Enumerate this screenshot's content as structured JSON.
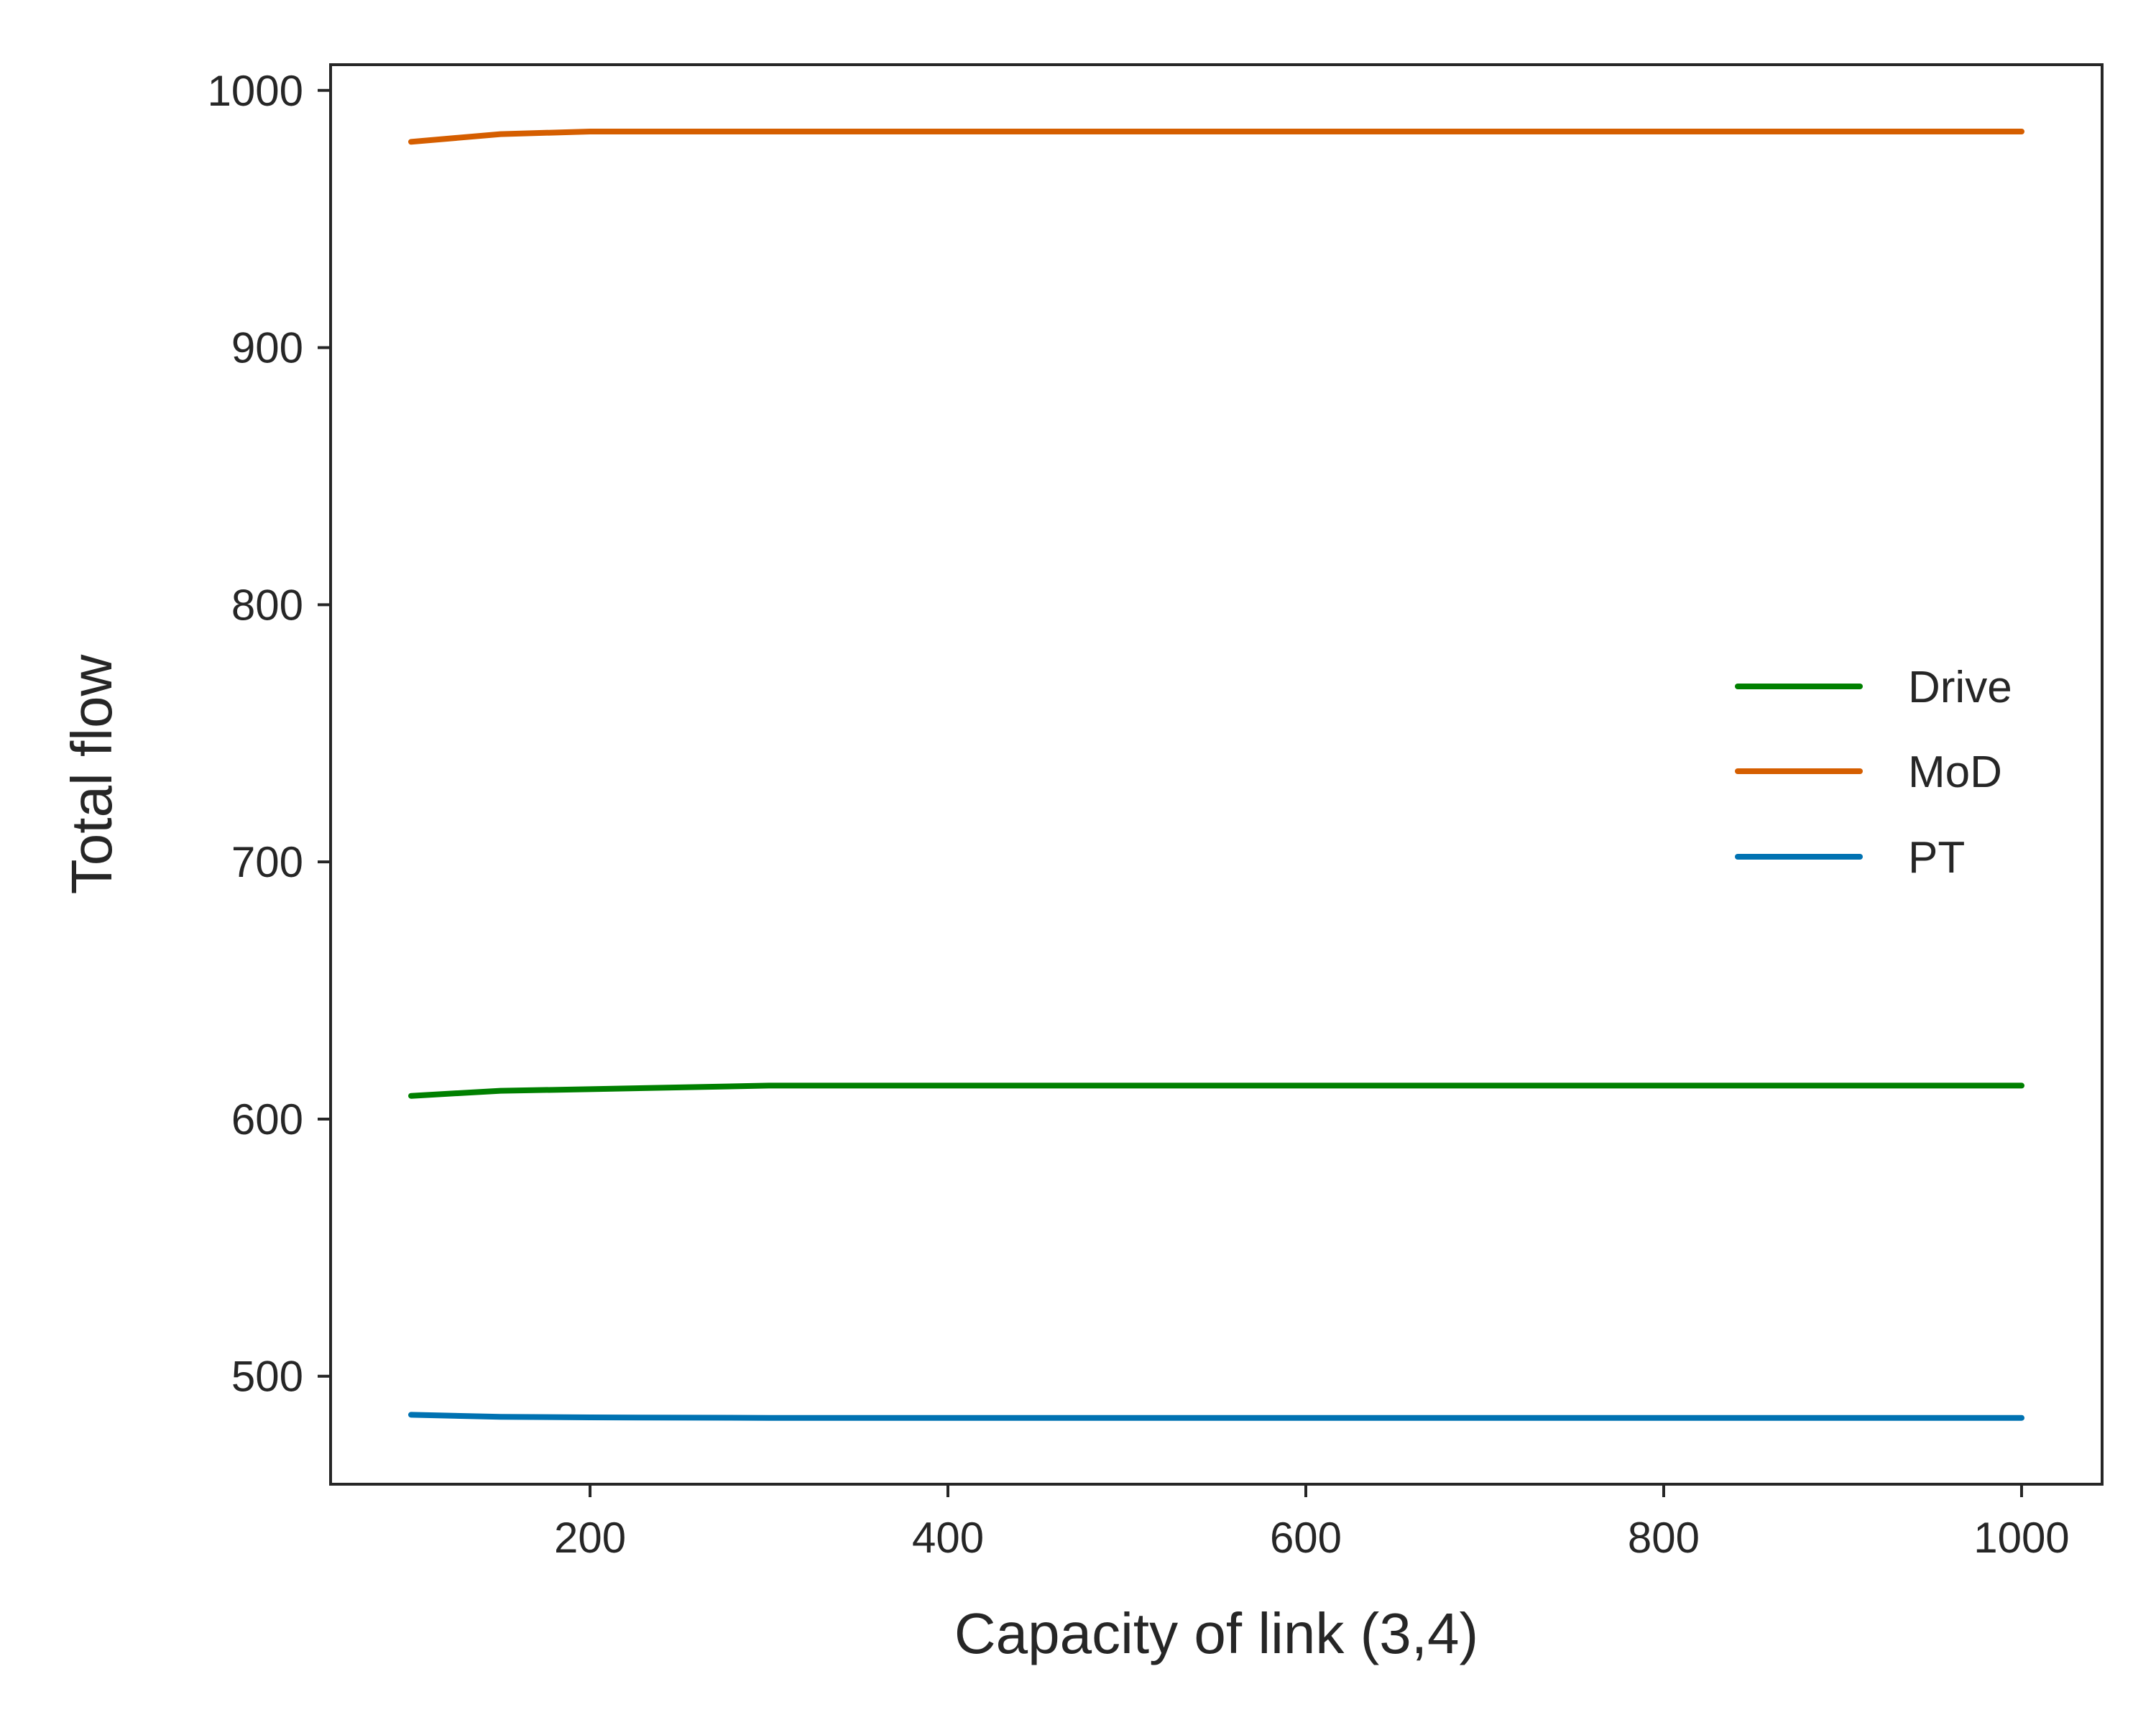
{
  "chart_data": {
    "type": "line",
    "title": "",
    "xlabel": "Capacity of link (3,4)",
    "ylabel": "Total flow",
    "xlim": [
      55,
      1045
    ],
    "ylim": [
      458,
      1010
    ],
    "xticks": [
      200,
      400,
      600,
      800,
      1000
    ],
    "yticks": [
      500,
      600,
      700,
      800,
      900,
      1000
    ],
    "grid": false,
    "legend_position": "right",
    "x": [
      100,
      150,
      200,
      300,
      400,
      500,
      600,
      700,
      800,
      900,
      1000
    ],
    "series": [
      {
        "name": "Drive",
        "color": "#008000",
        "values": [
          609,
          611,
          611.6,
          613,
          613,
          613,
          613,
          613,
          613,
          613,
          613
        ]
      },
      {
        "name": "MoD",
        "color": "#d55e00",
        "values": [
          980,
          983,
          984,
          984,
          984,
          984,
          984,
          984,
          984,
          984,
          984
        ]
      },
      {
        "name": "PT",
        "color": "#0072b2",
        "values": [
          485,
          484.2,
          484,
          483.8,
          483.8,
          483.8,
          483.8,
          483.8,
          483.8,
          483.8,
          483.8
        ]
      }
    ]
  }
}
